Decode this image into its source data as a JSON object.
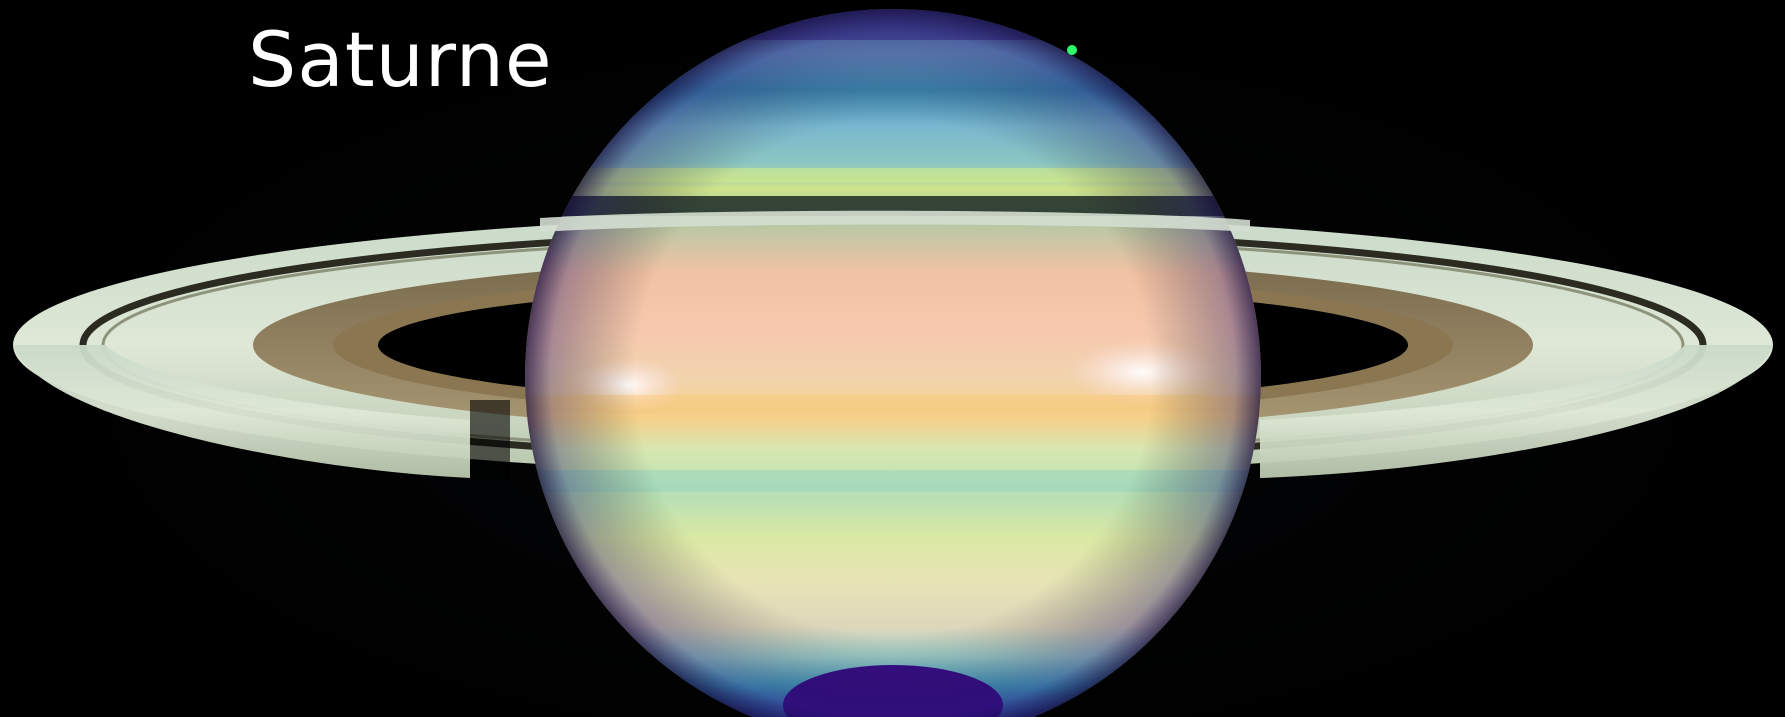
{
  "title": "Saturne",
  "colors": {
    "background": "#000000",
    "title_text": "#ffffff"
  }
}
